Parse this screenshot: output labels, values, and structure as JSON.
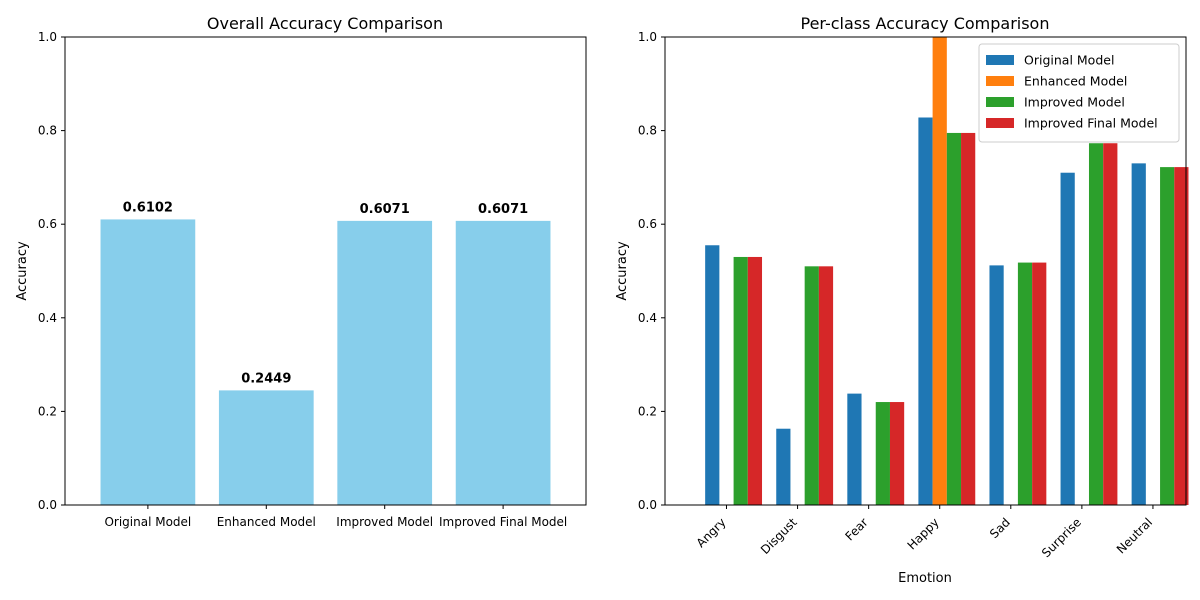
{
  "chart_data": [
    {
      "type": "bar",
      "title": "Overall Accuracy Comparison",
      "xlabel": "",
      "ylabel": "Accuracy",
      "ylim": [
        0,
        1.0
      ],
      "yticks": [
        "0.0",
        "0.2",
        "0.4",
        "0.6",
        "0.8",
        "1.0"
      ],
      "categories": [
        "Original Model",
        "Enhanced Model",
        "Improved Model",
        "Improved Final Model"
      ],
      "values": [
        0.6102,
        0.2449,
        0.6071,
        0.6071
      ],
      "data_labels": [
        "0.6102",
        "0.2449",
        "0.6071",
        "0.6071"
      ],
      "color": "#87ceeb",
      "grid": false
    },
    {
      "type": "bar",
      "title": "Per-class Accuracy Comparison",
      "xlabel": "Emotion",
      "ylabel": "Accuracy",
      "ylim": [
        0,
        1.0
      ],
      "yticks": [
        "0.0",
        "0.2",
        "0.4",
        "0.6",
        "0.8",
        "1.0"
      ],
      "categories": [
        "Angry",
        "Disgust",
        "Fear",
        "Happy",
        "Sad",
        "Surprise",
        "Neutral"
      ],
      "series": [
        {
          "name": "Original Model",
          "color": "#1f77b4",
          "values": [
            0.555,
            0.163,
            0.238,
            0.828,
            0.512,
            0.71,
            0.73
          ]
        },
        {
          "name": "Enhanced Model",
          "color": "#ff7f0e",
          "values": [
            0,
            0,
            0,
            1.0,
            0,
            0,
            0
          ]
        },
        {
          "name": "Improved Model",
          "color": "#2ca02c",
          "values": [
            0.53,
            0.51,
            0.22,
            0.795,
            0.518,
            0.773,
            0.722
          ]
        },
        {
          "name": "Improved Final Model",
          "color": "#d62728",
          "values": [
            0.53,
            0.51,
            0.22,
            0.795,
            0.518,
            0.773,
            0.722
          ]
        }
      ],
      "legend": "top-right",
      "grid": false
    }
  ]
}
